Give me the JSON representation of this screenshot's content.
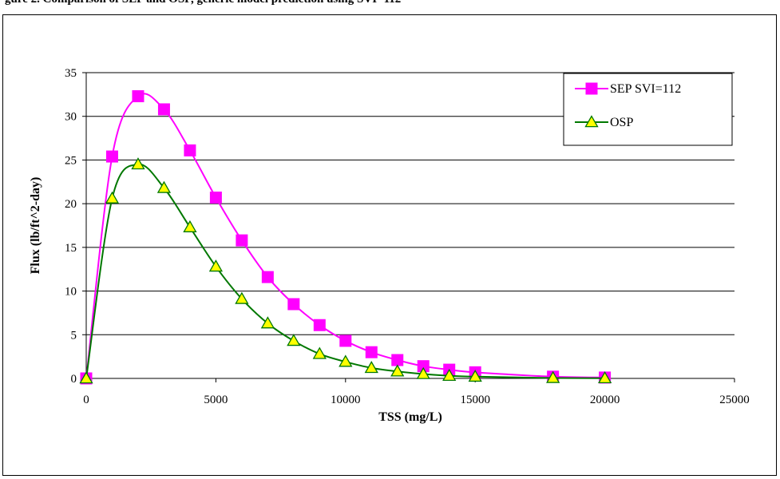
{
  "caption": {
    "text": "gure 2. Comparison of SEP and OSP, generic model prediction using SVI=112"
  },
  "chart_data": {
    "type": "line",
    "xlabel": "TSS (mg/L)",
    "ylabel": "Flux (lb/ft^2-day)",
    "xlim": [
      0,
      25000
    ],
    "ylim": [
      0,
      35
    ],
    "xticks": [
      0,
      5000,
      10000,
      15000,
      20000,
      25000
    ],
    "yticks": [
      0,
      5,
      10,
      15,
      20,
      25,
      30,
      35
    ],
    "grid": "horizontal",
    "legend_position": "top-right",
    "series": [
      {
        "name": "SEP SVI=112",
        "color": "#FF00FF",
        "marker": "square",
        "x": [
          0,
          1000,
          2000,
          3000,
          4000,
          5000,
          6000,
          7000,
          8000,
          9000,
          10000,
          11000,
          12000,
          13000,
          14000,
          15000,
          18000,
          20000
        ],
        "y": [
          0,
          25.4,
          32.3,
          30.8,
          26.1,
          20.7,
          15.8,
          11.6,
          8.5,
          6.1,
          4.3,
          3.0,
          2.1,
          1.4,
          1.0,
          0.7,
          0.2,
          0.1
        ]
      },
      {
        "name": "OSP",
        "color": "#007800",
        "marker": "triangle",
        "marker_fill": "#FFFF00",
        "x": [
          0,
          1000,
          2000,
          3000,
          4000,
          5000,
          6000,
          7000,
          8000,
          9000,
          10000,
          11000,
          12000,
          13000,
          14000,
          15000,
          18000,
          20000
        ],
        "y": [
          0,
          20.6,
          24.5,
          21.8,
          17.3,
          12.8,
          9.1,
          6.3,
          4.3,
          2.8,
          1.9,
          1.2,
          0.8,
          0.5,
          0.3,
          0.2,
          0.05,
          0.02
        ]
      }
    ]
  }
}
